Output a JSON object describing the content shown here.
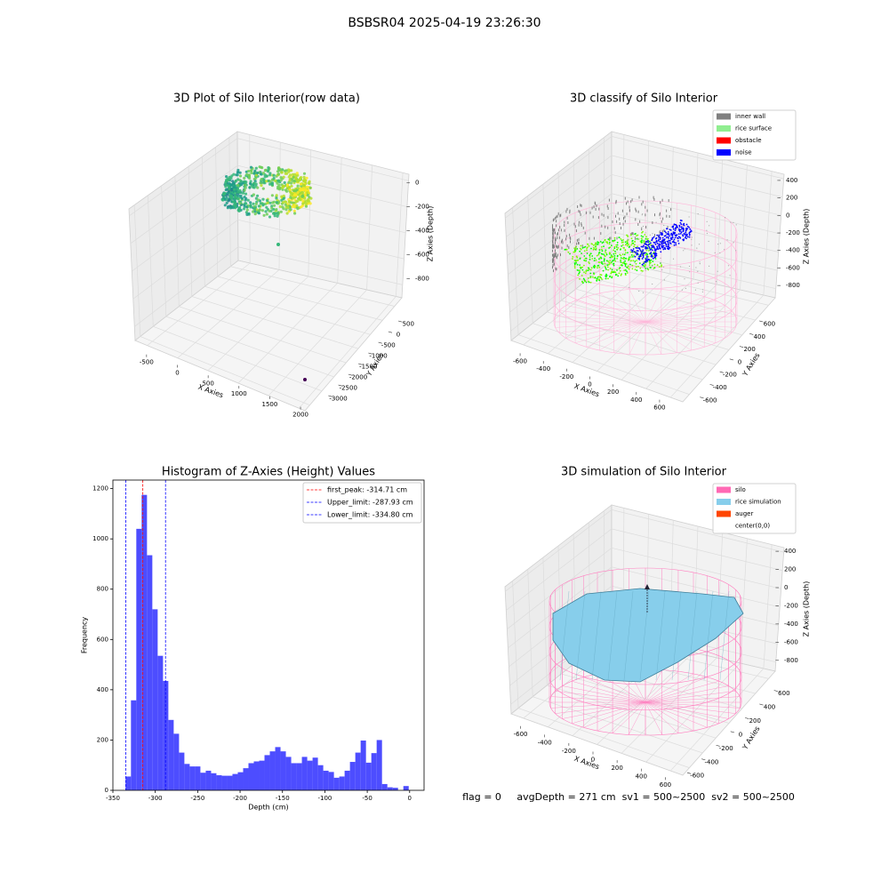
{
  "suptitle": "BSBSR04 2025-04-19 23:26:30",
  "footer": "flag = 0     avgDepth = 271 cm  sv1 = 500~2500  sv2 = 500~2500",
  "chart_data": [
    {
      "type": "scatter3d",
      "title": "3D Plot of Silo Interior(row data)",
      "xlabel": "X Axies",
      "ylabel": "Y Axies",
      "zlabel": "Z Axies (Depth)",
      "xlim": [
        -700,
        2100
      ],
      "xticks": [
        -500,
        0,
        500,
        1000,
        1500,
        2000
      ],
      "ylim": [
        -3200,
        800
      ],
      "yticks": [
        -3000,
        -2500,
        -2000,
        -1500,
        -1000,
        -500,
        0,
        500
      ],
      "zlim": [
        -900,
        50
      ],
      "zticks": [
        -800,
        -600,
        -400,
        -200,
        0
      ]
    },
    {
      "type": "scatter3d",
      "title": "3D classify of Silo Interior",
      "xlabel": "X Axies",
      "ylabel": "Y Axies",
      "zlabel": "Z Axies (Depth)",
      "xlim": [
        -700,
        700
      ],
      "xticks": [
        -600,
        -400,
        -200,
        0,
        200,
        400,
        600
      ],
      "ylim": [
        -700,
        700
      ],
      "yticks": [
        -600,
        -400,
        -200,
        0,
        200,
        400,
        600
      ],
      "zlim": [
        -900,
        450
      ],
      "zticks": [
        -800,
        -600,
        -400,
        -200,
        0,
        200,
        400
      ],
      "legend_loc": "upper right",
      "legend": [
        {
          "name": "inner wall",
          "color": "#808080"
        },
        {
          "name": "rice surface",
          "color": "#90ee90"
        },
        {
          "name": "obstacle",
          "color": "#ff0000"
        },
        {
          "name": "noise",
          "color": "#0000ff"
        }
      ]
    },
    {
      "type": "histogram",
      "title": "Histogram of Z-Axies (Height) Values",
      "xlabel": "Depth (cm)",
      "ylabel": "Frequency",
      "color": "#4d4dff",
      "bins": [
        -335,
        -328.7,
        -322.4,
        -316.1,
        -309.8,
        -303.5,
        -297.2,
        -290.9,
        -284.6,
        -278.3,
        -272,
        -265.7,
        -259.4,
        -253.1,
        -246.8,
        -240.5,
        -234.2,
        -227.9,
        -221.6,
        -215.3,
        -209,
        -202.7,
        -196.4,
        -190.1,
        -183.8,
        -177.5,
        -171.2,
        -164.9,
        -158.6,
        -152.3,
        -146,
        -139.7,
        -133.4,
        -127.1,
        -120.8,
        -114.5,
        -108.2,
        -101.9,
        -95.6,
        -89.3,
        -83,
        -76.7,
        -70.4,
        -64.1,
        -57.8,
        -51.5,
        -45.2,
        -38.9,
        -32.6,
        -26.3,
        -20,
        -13.7,
        -7.4,
        -1.1
      ],
      "values": [
        55,
        358,
        1040,
        1175,
        935,
        720,
        535,
        435,
        280,
        225,
        150,
        105,
        95,
        95,
        70,
        78,
        68,
        60,
        58,
        58,
        65,
        72,
        88,
        108,
        115,
        118,
        140,
        155,
        172,
        155,
        133,
        108,
        108,
        133,
        118,
        130,
        100,
        78,
        73,
        50,
        55,
        78,
        113,
        150,
        198,
        110,
        148,
        200,
        25,
        12,
        10,
        0,
        17
      ],
      "xlim": [
        -350,
        17
      ],
      "xticks": [
        -350,
        -300,
        -250,
        -200,
        -150,
        -100,
        -50,
        0
      ],
      "ylim": [
        0,
        1234
      ],
      "yticks": [
        0,
        200,
        400,
        600,
        800,
        1000,
        1200
      ],
      "legend_loc": "upper right",
      "lines": [
        {
          "name": "first_peak: -314.71 cm",
          "value": -314.71,
          "color": "#ff0000"
        },
        {
          "name": "Upper_limit: -287.93 cm",
          "value": -287.93,
          "color": "#0000ff"
        },
        {
          "name": "Lower_limit: -334.80 cm",
          "value": -334.8,
          "color": "#0000ff"
        }
      ]
    },
    {
      "type": "surface3d",
      "title": "3D simulation of Silo Interior",
      "xlabel": "X Axies",
      "ylabel": "Y Axies",
      "zlabel": "Z Axies (Depth)",
      "xlim": [
        -700,
        700
      ],
      "xticks": [
        -600,
        -400,
        -200,
        0,
        200,
        400,
        600
      ],
      "ylim": [
        -700,
        700
      ],
      "yticks": [
        -600,
        -400,
        -200,
        0,
        200,
        400,
        600
      ],
      "zlim": [
        -900,
        450
      ],
      "zticks": [
        -800,
        -600,
        -400,
        -200,
        0,
        200,
        400
      ],
      "legend_loc": "upper right",
      "legend": [
        {
          "name": "silo",
          "color": "#ff69b4"
        },
        {
          "name": "rice simulation",
          "color": "#87ceeb"
        },
        {
          "name": "auger",
          "color": "#ff4500"
        },
        {
          "name": "center(0,0)",
          "color": "none"
        }
      ]
    }
  ]
}
